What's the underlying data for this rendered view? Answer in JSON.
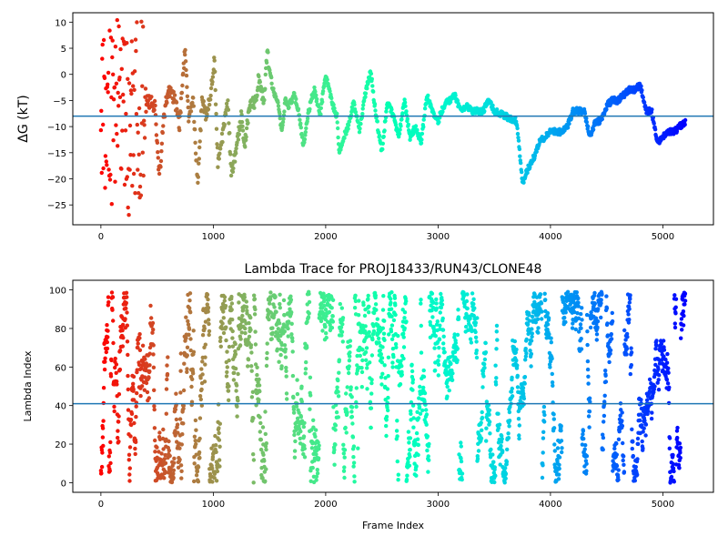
{
  "chart_data": [
    {
      "type": "scatter",
      "title": "",
      "xlabel": "",
      "ylabel": "ΔG (kT)",
      "xlim": [
        -250,
        5450
      ],
      "ylim": [
        -28.8,
        11.8
      ],
      "xticks": [
        0,
        1000,
        2000,
        3000,
        4000,
        5000
      ],
      "yticks": [
        -25,
        -20,
        -15,
        -10,
        -5,
        0,
        5,
        10
      ],
      "hline": -8.0,
      "hline_color": "#1f77b4",
      "colormap": "rainbow-reversed",
      "x_max": 5200,
      "anchors": [
        [
          0,
          0
        ],
        [
          60,
          -12
        ],
        [
          120,
          5
        ],
        [
          180,
          -20
        ],
        [
          240,
          3
        ],
        [
          300,
          -5
        ],
        [
          360,
          -8
        ],
        [
          420,
          -5
        ],
        [
          480,
          -6
        ],
        [
          520,
          -20
        ],
        [
          560,
          -8
        ],
        [
          600,
          -3
        ],
        [
          660,
          -5
        ],
        [
          700,
          -10
        ],
        [
          750,
          5.5
        ],
        [
          780,
          -8
        ],
        [
          820,
          -5
        ],
        [
          860,
          -21
        ],
        [
          900,
          -5
        ],
        [
          940,
          -8
        ],
        [
          980,
          -3
        ],
        [
          1010,
          3
        ],
        [
          1040,
          -17
        ],
        [
          1080,
          -12
        ],
        [
          1130,
          -5
        ],
        [
          1160,
          -19
        ],
        [
          1200,
          -15
        ],
        [
          1250,
          -8
        ],
        [
          1280,
          -14
        ],
        [
          1320,
          -6
        ],
        [
          1380,
          -5
        ],
        [
          1400,
          -1
        ],
        [
          1450,
          -5
        ],
        [
          1480,
          4
        ],
        [
          1530,
          -3
        ],
        [
          1570,
          -5
        ],
        [
          1610,
          -11
        ],
        [
          1640,
          -5
        ],
        [
          1670,
          -6
        ],
        [
          1720,
          -4
        ],
        [
          1760,
          -7
        ],
        [
          1800,
          -14
        ],
        [
          1840,
          -8
        ],
        [
          1870,
          -5
        ],
        [
          1900,
          -3
        ],
        [
          1950,
          -8
        ],
        [
          2000,
          0
        ],
        [
          2050,
          -5
        ],
        [
          2100,
          -8
        ],
        [
          2120,
          -15
        ],
        [
          2160,
          -12
        ],
        [
          2200,
          -10
        ],
        [
          2250,
          -5
        ],
        [
          2300,
          -11
        ],
        [
          2350,
          -4
        ],
        [
          2400,
          1
        ],
        [
          2430,
          -5
        ],
        [
          2470,
          -11
        ],
        [
          2500,
          -15
        ],
        [
          2550,
          -5
        ],
        [
          2600,
          -8
        ],
        [
          2650,
          -12
        ],
        [
          2700,
          -5
        ],
        [
          2750,
          -12
        ],
        [
          2800,
          -10
        ],
        [
          2850,
          -13
        ],
        [
          2900,
          -4
        ],
        [
          2950,
          -7
        ],
        [
          3000,
          -9
        ],
        [
          3050,
          -6
        ],
        [
          3100,
          -5
        ],
        [
          3150,
          -4
        ],
        [
          3200,
          -7
        ],
        [
          3250,
          -6
        ],
        [
          3300,
          -7
        ],
        [
          3400,
          -7
        ],
        [
          3450,
          -5
        ],
        [
          3500,
          -7
        ],
        [
          3600,
          -8
        ],
        [
          3700,
          -9
        ],
        [
          3750,
          -21
        ],
        [
          3800,
          -18
        ],
        [
          3850,
          -16
        ],
        [
          3900,
          -13
        ],
        [
          4000,
          -11
        ],
        [
          4100,
          -11
        ],
        [
          4150,
          -10
        ],
        [
          4200,
          -7
        ],
        [
          4300,
          -7
        ],
        [
          4350,
          -12
        ],
        [
          4400,
          -9
        ],
        [
          4450,
          -9
        ],
        [
          4500,
          -6
        ],
        [
          4550,
          -5
        ],
        [
          4600,
          -5
        ],
        [
          4650,
          -4
        ],
        [
          4700,
          -3
        ],
        [
          4750,
          -3
        ],
        [
          4800,
          -2
        ],
        [
          4850,
          -7
        ],
        [
          4900,
          -7
        ],
        [
          4950,
          -13
        ],
        [
          5000,
          -12
        ],
        [
          5050,
          -11
        ],
        [
          5100,
          -11
        ],
        [
          5150,
          -10
        ],
        [
          5200,
          -9
        ]
      ]
    },
    {
      "type": "scatter",
      "title": "Lambda Trace for PROJ18433/RUN43/CLONE48",
      "xlabel": "Frame Index",
      "ylabel": "Lambda Index",
      "xlim": [
        -250,
        5450
      ],
      "ylim": [
        -5,
        105
      ],
      "xticks": [
        0,
        1000,
        2000,
        3000,
        4000,
        5000
      ],
      "yticks": [
        0,
        20,
        40,
        60,
        80,
        100
      ],
      "hline": 41,
      "hline_color": "#1f77b4",
      "colormap": "rainbow-reversed",
      "x_max": 5200,
      "lambda_range": [
        0,
        99
      ]
    }
  ]
}
